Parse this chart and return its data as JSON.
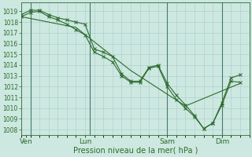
{
  "xlabel": "Pression niveau de la mer( hPa )",
  "background_color": "#cce8e0",
  "grid_color": "#aacccc",
  "line_color": "#2d6b2d",
  "vline_color": "#4a7a6a",
  "ylim": [
    1007.5,
    1019.8
  ],
  "xlim": [
    0,
    25
  ],
  "yticks": [
    1008,
    1009,
    1010,
    1011,
    1012,
    1013,
    1014,
    1015,
    1016,
    1017,
    1018,
    1019
  ],
  "day_labels": [
    "Ven",
    "Lun",
    "Sam",
    "Dim"
  ],
  "day_positions": [
    0.5,
    7,
    16,
    22
  ],
  "line1_x": [
    0,
    1,
    2,
    3,
    4,
    5,
    6,
    7,
    8,
    9,
    10,
    11,
    12,
    13,
    14,
    15,
    16,
    17,
    18,
    19,
    20,
    21,
    22,
    23,
    24
  ],
  "line1_y": [
    1018.7,
    1019.1,
    1019.1,
    1018.7,
    1018.4,
    1018.2,
    1018.0,
    1017.8,
    1015.5,
    1015.2,
    1014.8,
    1013.2,
    1012.5,
    1012.5,
    1013.8,
    1014.0,
    1012.3,
    1011.2,
    1010.3,
    1009.3,
    1008.1,
    1008.6,
    1010.5,
    1012.8,
    1013.1
  ],
  "line2_x": [
    0,
    1,
    2,
    3,
    4,
    5,
    6,
    7,
    8,
    9,
    10,
    11,
    12,
    13,
    14,
    15,
    16,
    17,
    18,
    19,
    20,
    21,
    22,
    23,
    24
  ],
  "line2_y": [
    1018.5,
    1018.9,
    1019.0,
    1018.5,
    1018.2,
    1017.8,
    1017.3,
    1016.8,
    1015.2,
    1014.8,
    1014.3,
    1013.0,
    1012.4,
    1012.4,
    1013.7,
    1013.9,
    1012.0,
    1010.8,
    1010.0,
    1009.2,
    1008.1,
    1008.6,
    1010.3,
    1012.5,
    1012.4
  ],
  "line3_x": [
    0,
    6,
    12,
    18,
    24
  ],
  "line3_y": [
    1018.5,
    1017.5,
    1013.5,
    1010.2,
    1012.3
  ],
  "xlabel_fontsize": 7,
  "ytick_fontsize": 5.5,
  "xtick_fontsize": 6.5
}
